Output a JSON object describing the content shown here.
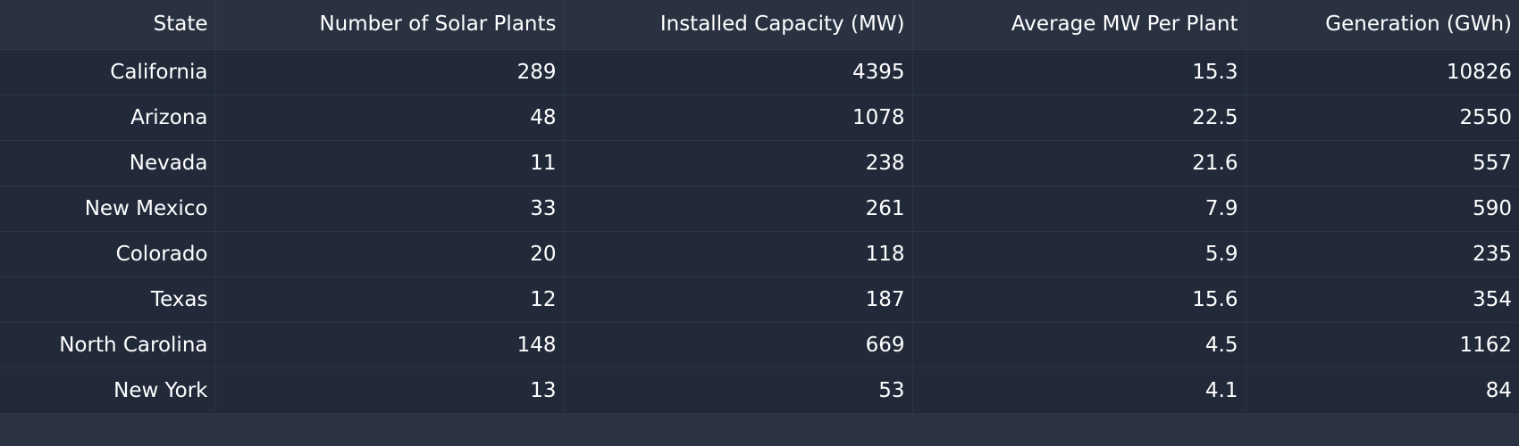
{
  "table": {
    "columns": [
      "State",
      "Number of Solar Plants",
      "Installed Capacity (MW)",
      "Average MW Per Plant",
      "Generation (GWh)"
    ],
    "rows": [
      [
        "California",
        "289",
        "4395",
        "15.3",
        "10826"
      ],
      [
        "Arizona",
        "48",
        "1078",
        "22.5",
        "2550"
      ],
      [
        "Nevada",
        "11",
        "238",
        "21.6",
        "557"
      ],
      [
        "New Mexico",
        "33",
        "261",
        "7.9",
        "590"
      ],
      [
        "Colorado",
        "20",
        "118",
        "5.9",
        "235"
      ],
      [
        "Texas",
        "12",
        "187",
        "15.6",
        "354"
      ],
      [
        "North Carolina",
        "148",
        "669",
        "4.5",
        "1162"
      ],
      [
        "New York",
        "13",
        "53",
        "4.1",
        "84"
      ]
    ]
  },
  "colors": {
    "header_bg": "#2a3242",
    "row_bg": "#222a3a",
    "page_bg": "#2b3342",
    "text": "#ffffff"
  }
}
